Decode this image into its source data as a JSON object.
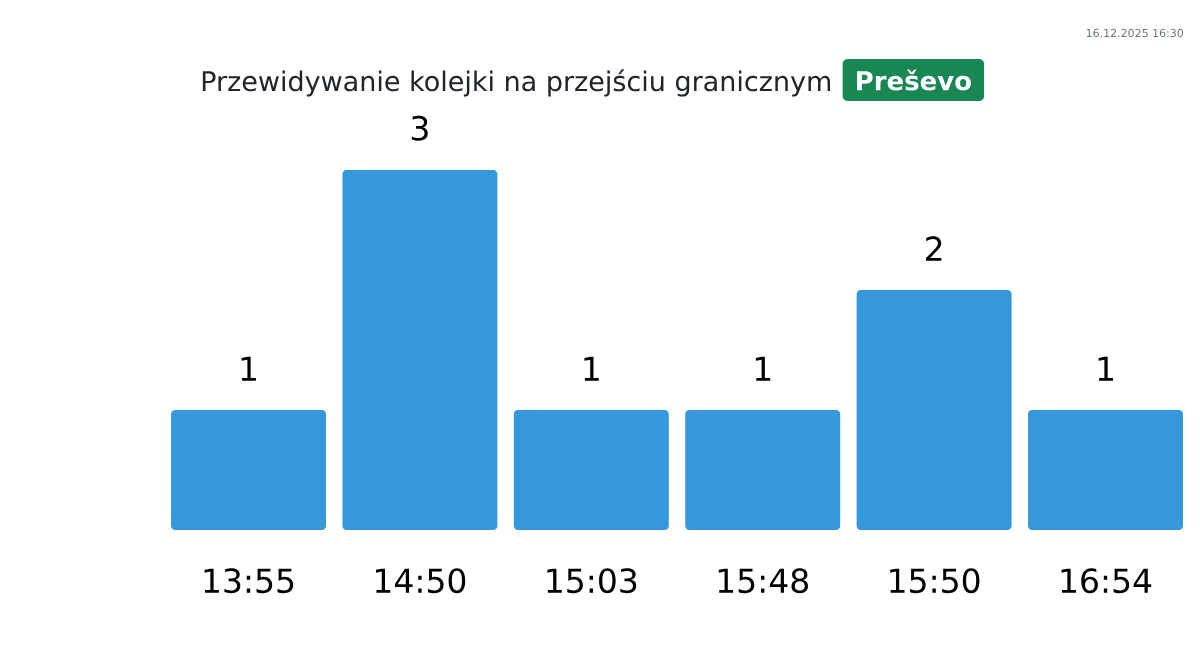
{
  "chart_data": {
    "type": "bar",
    "title": "Przewidywanie kolejki na przejściu granicznym",
    "subtitle": "Preševo",
    "categories": [
      "13:55",
      "14:50",
      "15:03",
      "15:48",
      "15:50",
      "16:54"
    ],
    "values": [
      1,
      3,
      1,
      1,
      2,
      1
    ],
    "color": "#3498db",
    "data_labels": true,
    "annotations": [
      "16.12.2025 16:30"
    ]
  }
}
